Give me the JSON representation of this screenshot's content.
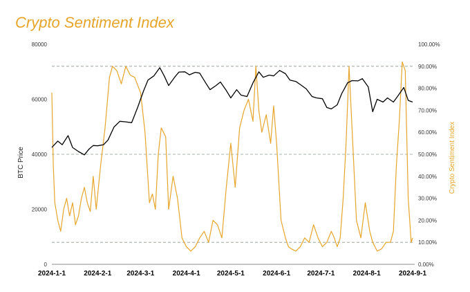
{
  "chart_data": {
    "type": "line",
    "title": "Crypto Sentiment Index",
    "xlabel": "",
    "ylabel": "BTC Price",
    "y2label": "Crypto Sentiment Index",
    "x_ticks": [
      "2024-1-1",
      "2024-2-1",
      "2024-3-1",
      "2024-4-1",
      "2024-5-1",
      "2024-6-1",
      "2024-7-1",
      "2024-8-1",
      "2024-9-1"
    ],
    "y_ticks": [
      "0",
      "20000",
      "40000",
      "60000",
      "80000"
    ],
    "y2_ticks": [
      "0.00%",
      "10.00%",
      "20.00%",
      "30.00%",
      "40.00%",
      "50.00%",
      "60.00%",
      "70.00%",
      "80.00%",
      "90.00%",
      "100.00%"
    ],
    "ylim": [
      0,
      80000
    ],
    "y2lim": [
      0,
      1
    ],
    "reference_lines": [
      0.1,
      0.5,
      0.9
    ],
    "series": [
      {
        "axis": "left",
        "color": "#000000",
        "x": [
          "2024-01-01",
          "2024-01-05",
          "2024-01-08",
          "2024-01-12",
          "2024-01-15",
          "2024-01-19",
          "2024-01-23",
          "2024-01-26",
          "2024-01-29",
          "2024-02-01",
          "2024-02-05",
          "2024-02-08",
          "2024-02-12",
          "2024-02-16",
          "2024-02-20",
          "2024-02-24",
          "2024-02-28",
          "2024-03-03",
          "2024-03-06",
          "2024-03-10",
          "2024-03-14",
          "2024-03-17",
          "2024-03-20",
          "2024-03-24",
          "2024-03-27",
          "2024-03-31",
          "2024-04-03",
          "2024-04-07",
          "2024-04-10",
          "2024-04-14",
          "2024-04-17",
          "2024-04-21",
          "2024-04-24",
          "2024-04-28",
          "2024-05-01",
          "2024-05-05",
          "2024-05-08",
          "2024-05-12",
          "2024-05-16",
          "2024-05-20",
          "2024-05-23",
          "2024-05-27",
          "2024-05-30",
          "2024-06-03",
          "2024-06-07",
          "2024-06-10",
          "2024-06-14",
          "2024-06-18",
          "2024-06-21",
          "2024-06-25",
          "2024-06-28",
          "2024-07-02",
          "2024-07-05",
          "2024-07-08",
          "2024-07-12",
          "2024-07-15",
          "2024-07-19",
          "2024-07-22",
          "2024-07-26",
          "2024-07-29",
          "2024-08-02",
          "2024-08-05",
          "2024-08-08",
          "2024-08-12",
          "2024-08-15",
          "2024-08-19",
          "2024-08-22",
          "2024-08-26",
          "2024-08-29",
          "2024-09-01"
        ],
        "values": [
          42500,
          44800,
          43500,
          46800,
          42500,
          41000,
          39800,
          41800,
          43200,
          43100,
          43500,
          45200,
          49900,
          52000,
          51800,
          51500,
          57000,
          63000,
          67000,
          68500,
          71500,
          68500,
          65000,
          68000,
          69900,
          70000,
          68900,
          69800,
          69500,
          66000,
          63500,
          65000,
          66300,
          63200,
          60500,
          63500,
          61500,
          61000,
          66000,
          70000,
          68000,
          68800,
          68500,
          70500,
          69300,
          67000,
          66500,
          65000,
          63800,
          61000,
          60500,
          60200,
          57000,
          56500,
          58000,
          62000,
          66000,
          66800,
          66700,
          67500,
          64500,
          55500,
          60000,
          59000,
          60500,
          59000,
          61200,
          64300,
          59600,
          59000
        ]
      },
      {
        "axis": "right",
        "color": "#e6a52a",
        "x": [
          "2024-01-01",
          "2024-01-02",
          "2024-01-03",
          "2024-01-05",
          "2024-01-07",
          "2024-01-09",
          "2024-01-11",
          "2024-01-13",
          "2024-01-15",
          "2024-01-17",
          "2024-01-19",
          "2024-01-21",
          "2024-01-23",
          "2024-01-25",
          "2024-01-27",
          "2024-01-29",
          "2024-01-31",
          "2024-02-03",
          "2024-02-06",
          "2024-02-09",
          "2024-02-11",
          "2024-02-14",
          "2024-02-17",
          "2024-02-20",
          "2024-02-23",
          "2024-02-26",
          "2024-03-01",
          "2024-03-04",
          "2024-03-07",
          "2024-03-09",
          "2024-03-11",
          "2024-03-13",
          "2024-03-15",
          "2024-03-18",
          "2024-03-20",
          "2024-03-23",
          "2024-03-26",
          "2024-03-29",
          "2024-04-01",
          "2024-04-04",
          "2024-04-07",
          "2024-04-10",
          "2024-04-13",
          "2024-04-16",
          "2024-04-19",
          "2024-04-22",
          "2024-04-25",
          "2024-04-28",
          "2024-05-01",
          "2024-05-04",
          "2024-05-07",
          "2024-05-10",
          "2024-05-13",
          "2024-05-16",
          "2024-05-18",
          "2024-05-20",
          "2024-05-22",
          "2024-05-25",
          "2024-05-28",
          "2024-05-30",
          "2024-06-01",
          "2024-06-04",
          "2024-06-07",
          "2024-06-09",
          "2024-06-11",
          "2024-06-14",
          "2024-06-17",
          "2024-06-20",
          "2024-06-23",
          "2024-06-26",
          "2024-06-29",
          "2024-07-02",
          "2024-07-05",
          "2024-07-08",
          "2024-07-10",
          "2024-07-12",
          "2024-07-14",
          "2024-07-16",
          "2024-07-18",
          "2024-07-20",
          "2024-07-22",
          "2024-07-25",
          "2024-07-28",
          "2024-07-31",
          "2024-08-03",
          "2024-08-05",
          "2024-08-08",
          "2024-08-11",
          "2024-08-14",
          "2024-08-17",
          "2024-08-19",
          "2024-08-21",
          "2024-08-23",
          "2024-08-25",
          "2024-08-27",
          "2024-08-29",
          "2024-08-31",
          "2024-09-01"
        ],
        "values": [
          0.78,
          0.45,
          0.28,
          0.2,
          0.15,
          0.25,
          0.3,
          0.22,
          0.28,
          0.18,
          0.22,
          0.3,
          0.35,
          0.28,
          0.24,
          0.4,
          0.25,
          0.45,
          0.62,
          0.85,
          0.9,
          0.88,
          0.82,
          0.9,
          0.86,
          0.85,
          0.78,
          0.6,
          0.28,
          0.32,
          0.25,
          0.5,
          0.62,
          0.58,
          0.25,
          0.4,
          0.3,
          0.12,
          0.08,
          0.06,
          0.08,
          0.12,
          0.15,
          0.1,
          0.2,
          0.18,
          0.12,
          0.35,
          0.55,
          0.35,
          0.62,
          0.7,
          0.75,
          0.65,
          0.9,
          0.7,
          0.6,
          0.68,
          0.55,
          0.72,
          0.55,
          0.2,
          0.12,
          0.08,
          0.07,
          0.06,
          0.08,
          0.12,
          0.1,
          0.18,
          0.12,
          0.08,
          0.1,
          0.15,
          0.12,
          0.08,
          0.12,
          0.3,
          0.55,
          0.9,
          0.62,
          0.2,
          0.12,
          0.28,
          0.15,
          0.1,
          0.06,
          0.07,
          0.1,
          0.1,
          0.15,
          0.45,
          0.65,
          0.92,
          0.88,
          0.3,
          0.1,
          0.12
        ]
      }
    ]
  }
}
